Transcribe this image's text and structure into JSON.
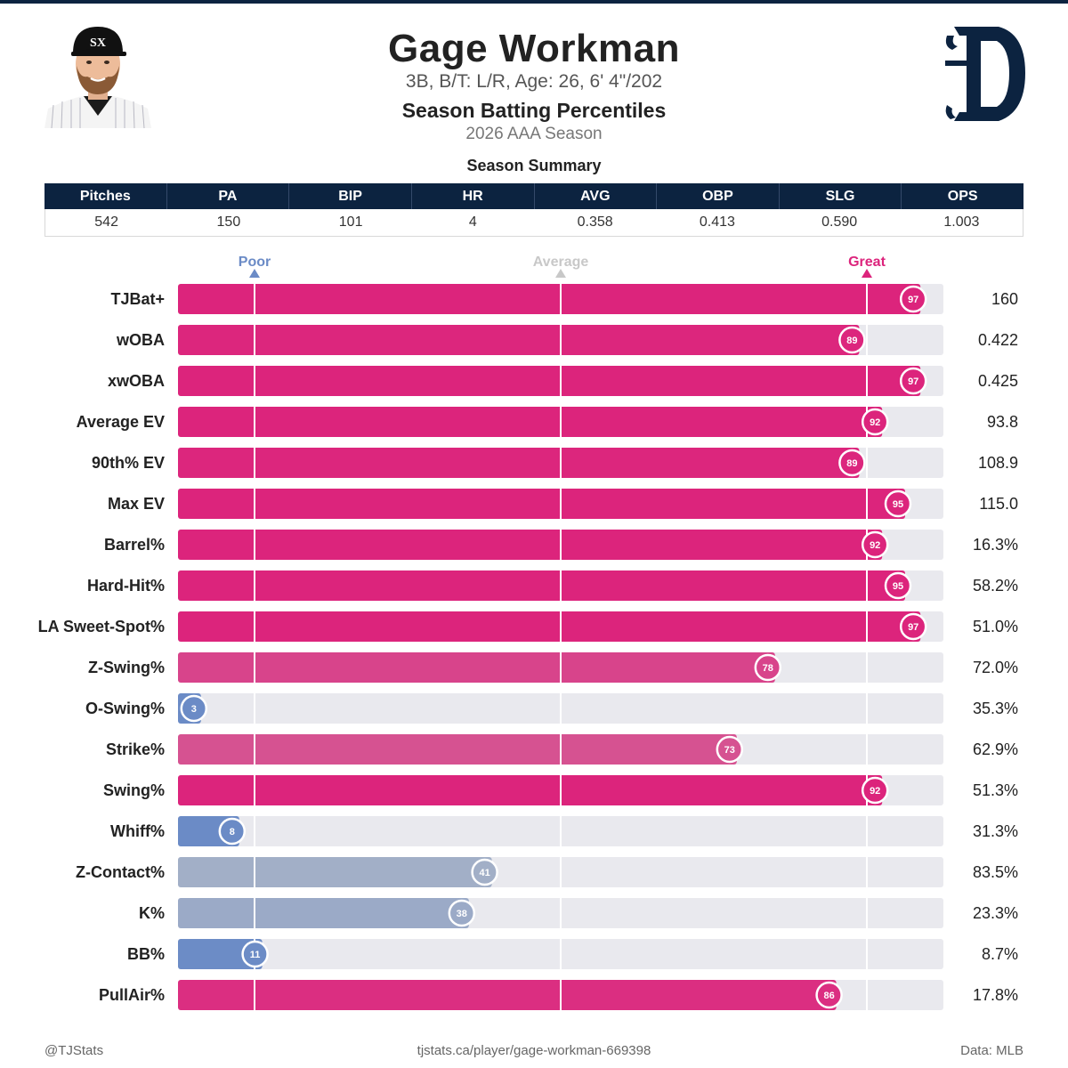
{
  "header": {
    "name": "Gage Workman",
    "bio": "3B, B/T: L/R, Age: 26, 6' 4\"/202",
    "title": "Season Batting Percentiles",
    "subtitle": "2026 AAA Season",
    "summary_title": "Season Summary"
  },
  "summary": {
    "columns": [
      "Pitches",
      "PA",
      "BIP",
      "HR",
      "AVG",
      "OBP",
      "SLG",
      "OPS"
    ],
    "values": [
      "542",
      "150",
      "101",
      "4",
      "0.358",
      "0.413",
      "0.590",
      "1.003"
    ]
  },
  "colors": {
    "navy": "#0c2340",
    "great": "#dc247c",
    "poor": "#6b8bc6",
    "average": "#c8c8c8",
    "track": "#e9e9ee"
  },
  "chart_data": {
    "type": "bar",
    "orientation": "horizontal",
    "xlim": [
      0,
      100
    ],
    "markers": [
      {
        "label": "Poor",
        "value": 10,
        "color": "#6b8bc6"
      },
      {
        "label": "Average",
        "value": 50,
        "color": "#c8c8c8"
      },
      {
        "label": "Great",
        "value": 90,
        "color": "#dc247c"
      }
    ],
    "categories": [
      "TJBat+",
      "wOBA",
      "xwOBA",
      "Average EV",
      "90th% EV",
      "Max EV",
      "Barrel%",
      "Hard-Hit%",
      "LA Sweet-Spot%",
      "Z-Swing%",
      "O-Swing%",
      "Strike%",
      "Swing%",
      "Whiff%",
      "Z-Contact%",
      "K%",
      "BB%",
      "PullAir%"
    ],
    "percentiles": [
      97,
      89,
      97,
      92,
      89,
      95,
      92,
      95,
      97,
      78,
      3,
      73,
      92,
      8,
      41,
      38,
      11,
      86
    ],
    "stat_values": [
      "160",
      "0.422",
      "0.425",
      "93.8",
      "108.9",
      "115.0",
      "16.3%",
      "58.2%",
      "51.0%",
      "72.0%",
      "35.3%",
      "62.9%",
      "51.3%",
      "31.3%",
      "83.5%",
      "23.3%",
      "8.7%",
      "17.8%"
    ]
  },
  "footer": {
    "left": "@TJStats",
    "center": "tjstats.ca/player/gage-workman-669398",
    "right": "Data: MLB"
  }
}
